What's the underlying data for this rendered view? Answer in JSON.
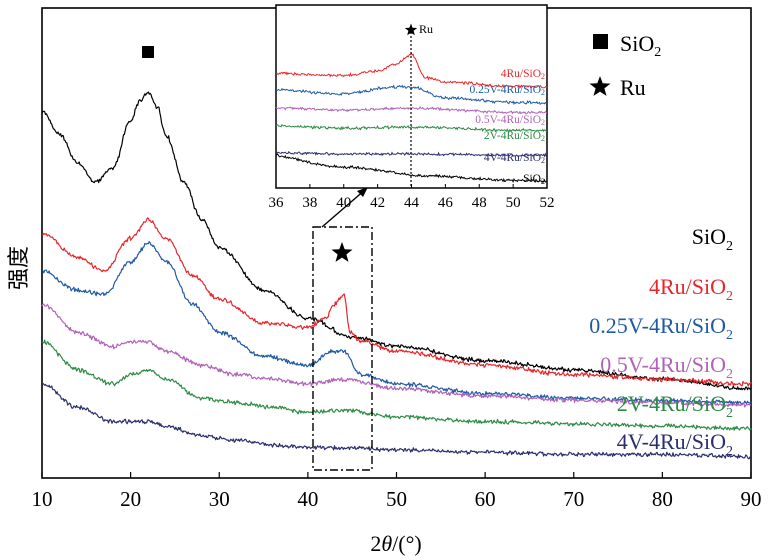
{
  "chart_data": {
    "type": "line",
    "title": "",
    "xlabel": "2θ/(°)",
    "xlabel_prefix": "2",
    "xlabel_theta": "θ",
    "xlabel_suffix": "/(°)",
    "ylabel": "强度",
    "xlim": [
      10,
      90
    ],
    "xticks": [
      "10",
      "20",
      "30",
      "40",
      "50",
      "60",
      "70",
      "80",
      "90"
    ],
    "series": [
      {
        "name": "SiO2",
        "label_main": "SiO",
        "label_sub": "2",
        "color": "#000000",
        "x": [
          10,
          12,
          14,
          16,
          18,
          20,
          21,
          22,
          23,
          24,
          26,
          28,
          30,
          35,
          40,
          45,
          50,
          60,
          70,
          80,
          90
        ],
        "y": [
          0.78,
          0.73,
          0.67,
          0.63,
          0.66,
          0.76,
          0.8,
          0.82,
          0.79,
          0.73,
          0.63,
          0.55,
          0.49,
          0.4,
          0.34,
          0.3,
          0.28,
          0.25,
          0.23,
          0.21,
          0.19
        ]
      },
      {
        "name": "4Ru/SiO2",
        "label_main": "4Ru/SiO",
        "label_sub": "2",
        "color": "#e8262a",
        "x": [
          10,
          14,
          17,
          20,
          22,
          24,
          27,
          30,
          35,
          40,
          42,
          43,
          44,
          44.8,
          46,
          50,
          60,
          70,
          80,
          90
        ],
        "y": [
          0.52,
          0.47,
          0.44,
          0.51,
          0.55,
          0.51,
          0.43,
          0.38,
          0.33,
          0.32,
          0.34,
          0.37,
          0.39,
          0.31,
          0.29,
          0.27,
          0.24,
          0.22,
          0.21,
          0.2
        ]
      },
      {
        "name": "0.25V-4Ru/SiO2",
        "label_main": "0.25V-4Ru/SiO",
        "label_sub": "2",
        "color": "#1f5aa6",
        "x": [
          10,
          14,
          17,
          20,
          22,
          24,
          27,
          30,
          35,
          40,
          43,
          44,
          46,
          50,
          60,
          70,
          80,
          90
        ],
        "y": [
          0.44,
          0.4,
          0.39,
          0.46,
          0.5,
          0.46,
          0.37,
          0.31,
          0.26,
          0.24,
          0.27,
          0.27,
          0.22,
          0.2,
          0.18,
          0.17,
          0.165,
          0.16
        ]
      },
      {
        "name": "0.5V-4Ru/SiO2",
        "label_main": "0.5V-4Ru/SiO",
        "label_sub": "2",
        "color": "#b062b8",
        "x": [
          10,
          14,
          18,
          20,
          22,
          24,
          28,
          32,
          36,
          40,
          44,
          50,
          60,
          70,
          80,
          90
        ],
        "y": [
          0.37,
          0.31,
          0.28,
          0.29,
          0.29,
          0.27,
          0.24,
          0.22,
          0.21,
          0.2,
          0.21,
          0.19,
          0.175,
          0.165,
          0.16,
          0.155
        ]
      },
      {
        "name": "2V-4Ru/SiO2",
        "label_main": "2V-4Ru/SiO",
        "label_sub": "2",
        "color": "#2e8b45",
        "x": [
          10,
          14,
          18,
          20,
          22,
          24,
          28,
          32,
          36,
          40,
          44,
          50,
          60,
          70,
          80,
          90
        ],
        "y": [
          0.29,
          0.23,
          0.2,
          0.22,
          0.23,
          0.21,
          0.17,
          0.16,
          0.15,
          0.14,
          0.145,
          0.13,
          0.12,
          0.115,
          0.11,
          0.105
        ]
      },
      {
        "name": "4V-4Ru/SiO2",
        "label_main": "4V-4Ru/SiO",
        "label_sub": "2",
        "color": "#2b2e6e",
        "x": [
          10,
          14,
          18,
          20,
          22,
          24,
          28,
          32,
          36,
          40,
          44,
          50,
          60,
          70,
          80,
          90
        ],
        "y": [
          0.2,
          0.15,
          0.12,
          0.12,
          0.12,
          0.11,
          0.09,
          0.08,
          0.07,
          0.065,
          0.065,
          0.06,
          0.055,
          0.05,
          0.05,
          0.045
        ]
      }
    ],
    "legend": [
      {
        "symbol": "square",
        "label_main": "SiO",
        "label_sub": "2"
      },
      {
        "symbol": "star",
        "label_main": "Ru",
        "label_sub": ""
      }
    ],
    "annotations": [
      {
        "symbol": "square",
        "x": 22,
        "meaning": "SiO2 peak"
      },
      {
        "symbol": "star",
        "x": 44,
        "meaning": "Ru peak"
      }
    ],
    "inset": {
      "xlim": [
        36,
        52
      ],
      "xticks": [
        "36",
        "38",
        "40",
        "42",
        "44",
        "46",
        "48",
        "50",
        "52"
      ],
      "marker_label": "Ru",
      "marker_x": 44,
      "series_labels": [
        {
          "main": "4Ru/SiO",
          "sub": "2"
        },
        {
          "main": "0.25V-4Ru/SiO",
          "sub": "2"
        },
        {
          "main": "0.5V-4Ru/SiO",
          "sub": "2"
        },
        {
          "main": "2V-4Ru/SiO",
          "sub": "2"
        },
        {
          "main": "4V-4Ru/SiO",
          "sub": "2"
        },
        {
          "main": "SiO",
          "sub": "2"
        }
      ]
    }
  }
}
